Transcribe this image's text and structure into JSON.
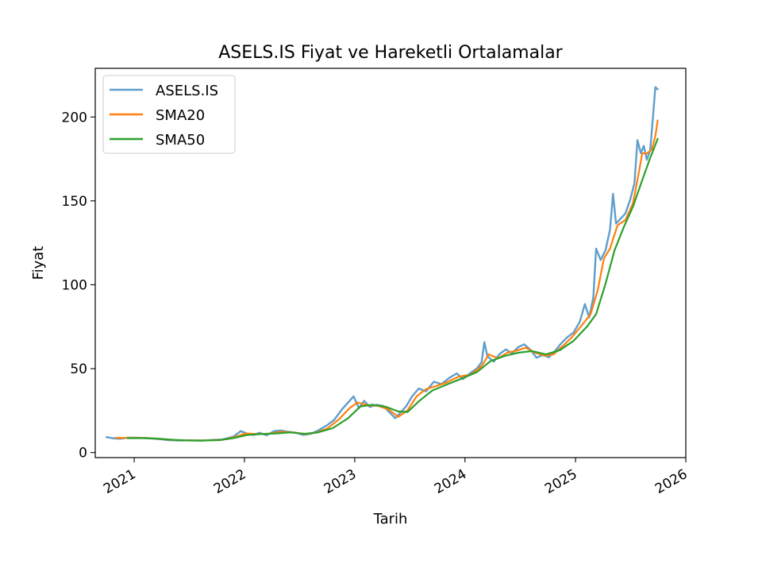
{
  "chart_data": {
    "type": "line",
    "title": "ASELS.IS Fiyat ve Hareketli Ortalamalar",
    "xlabel": "Tarih",
    "ylabel": "Fiyat",
    "x_tick_labels": [
      "2021",
      "2022",
      "2023",
      "2024",
      "2025",
      "2026"
    ],
    "y_tick_labels": [
      "0",
      "50",
      "100",
      "150",
      "200"
    ],
    "y_ticks": [
      0,
      50,
      100,
      150,
      200
    ],
    "x_ticks": [
      "2021-01-01",
      "2022-01-01",
      "2023-01-01",
      "2024-01-01",
      "2025-01-01",
      "2026-01-01"
    ],
    "xlim": [
      "2020-08-25",
      "2026-01-01"
    ],
    "ylim": [
      -3,
      229
    ],
    "grid": false,
    "legend_position": "upper-left",
    "series": [
      {
        "name": "ASELS.IS",
        "color": "#5f9ecb",
        "points": [
          [
            "2020-10-01",
            9.2
          ],
          [
            "2020-10-20",
            8.6
          ],
          [
            "2020-11-15",
            8.2
          ],
          [
            "2020-12-10",
            8.9
          ],
          [
            "2021-01-10",
            8.9
          ],
          [
            "2021-02-15",
            8.6
          ],
          [
            "2021-03-20",
            8.1
          ],
          [
            "2021-04-25",
            7.4
          ],
          [
            "2021-06-01",
            7.2
          ],
          [
            "2021-07-05",
            7.3
          ],
          [
            "2021-08-10",
            7.1
          ],
          [
            "2021-09-15",
            7.5
          ],
          [
            "2021-10-20",
            7.8
          ],
          [
            "2021-11-25",
            9.5
          ],
          [
            "2021-12-20",
            12.8
          ],
          [
            "2022-01-10",
            11.2
          ],
          [
            "2022-02-01",
            10.5
          ],
          [
            "2022-02-20",
            11.8
          ],
          [
            "2022-03-15",
            10.3
          ],
          [
            "2022-04-10",
            12.8
          ],
          [
            "2022-05-01",
            13.2
          ],
          [
            "2022-05-25",
            12.4
          ],
          [
            "2022-06-20",
            11.8
          ],
          [
            "2022-07-15",
            10.5
          ],
          [
            "2022-08-10",
            11.2
          ],
          [
            "2022-09-05",
            13.5
          ],
          [
            "2022-10-01",
            16.2
          ],
          [
            "2022-10-25",
            19.5
          ],
          [
            "2022-11-20",
            25.8
          ],
          [
            "2022-12-10",
            29.8
          ],
          [
            "2022-12-28",
            33.5
          ],
          [
            "2023-01-15",
            26.5
          ],
          [
            "2023-02-01",
            30.8
          ],
          [
            "2023-02-20",
            27.2
          ],
          [
            "2023-03-15",
            28.5
          ],
          [
            "2023-04-05",
            27.8
          ],
          [
            "2023-04-25",
            24.2
          ],
          [
            "2023-05-15",
            20.5
          ],
          [
            "2023-06-01",
            23.8
          ],
          [
            "2023-06-20",
            27.5
          ],
          [
            "2023-07-10",
            33.5
          ],
          [
            "2023-08-01",
            38.2
          ],
          [
            "2023-08-25",
            36.5
          ],
          [
            "2023-09-20",
            42.2
          ],
          [
            "2023-10-15",
            40.8
          ],
          [
            "2023-11-10",
            44.5
          ],
          [
            "2023-12-05",
            47.2
          ],
          [
            "2023-12-25",
            43.8
          ],
          [
            "2024-01-20",
            47.5
          ],
          [
            "2024-02-10",
            50.2
          ],
          [
            "2024-02-25",
            53.8
          ],
          [
            "2024-03-05",
            65.8
          ],
          [
            "2024-03-15",
            57.5
          ],
          [
            "2024-04-05",
            54.2
          ],
          [
            "2024-04-25",
            58.8
          ],
          [
            "2024-05-15",
            61.5
          ],
          [
            "2024-06-05",
            59.2
          ],
          [
            "2024-06-25",
            62.8
          ],
          [
            "2024-07-15",
            64.5
          ],
          [
            "2024-08-05",
            61.2
          ],
          [
            "2024-08-25",
            56.5
          ],
          [
            "2024-09-15",
            58.2
          ],
          [
            "2024-10-05",
            56.8
          ],
          [
            "2024-10-25",
            60.5
          ],
          [
            "2024-11-15",
            65.2
          ],
          [
            "2024-12-05",
            68.8
          ],
          [
            "2024-12-25",
            71.5
          ],
          [
            "2025-01-15",
            77.8
          ],
          [
            "2025-02-01",
            88.5
          ],
          [
            "2025-02-15",
            80.5
          ],
          [
            "2025-03-01",
            92.5
          ],
          [
            "2025-03-10",
            121.5
          ],
          [
            "2025-03-25",
            114.8
          ],
          [
            "2025-04-10",
            120.5
          ],
          [
            "2025-04-25",
            132.8
          ],
          [
            "2025-05-05",
            154.2
          ],
          [
            "2025-05-15",
            136.5
          ],
          [
            "2025-06-01",
            139.8
          ],
          [
            "2025-06-15",
            142.5
          ],
          [
            "2025-07-01",
            150.8
          ],
          [
            "2025-07-15",
            160.5
          ],
          [
            "2025-07-25",
            186.2
          ],
          [
            "2025-08-05",
            178.5
          ],
          [
            "2025-08-15",
            182.8
          ],
          [
            "2025-08-25",
            174.5
          ],
          [
            "2025-09-05",
            180.2
          ],
          [
            "2025-09-15",
            201.5
          ],
          [
            "2025-09-22",
            217.8
          ],
          [
            "2025-09-30",
            216.5
          ]
        ]
      },
      {
        "name": "SMA20",
        "color": "#ff7f0e",
        "points": [
          [
            "2020-11-01",
            8.8
          ],
          [
            "2020-12-10",
            8.7
          ],
          [
            "2021-01-20",
            8.8
          ],
          [
            "2021-03-01",
            8.5
          ],
          [
            "2021-04-15",
            7.8
          ],
          [
            "2021-06-01",
            7.3
          ],
          [
            "2021-07-20",
            7.2
          ],
          [
            "2021-09-01",
            7.3
          ],
          [
            "2021-10-20",
            7.6
          ],
          [
            "2021-11-30",
            9.2
          ],
          [
            "2022-01-05",
            11.4
          ],
          [
            "2022-02-15",
            11.0
          ],
          [
            "2022-03-25",
            11.3
          ],
          [
            "2022-05-01",
            12.4
          ],
          [
            "2022-06-10",
            12.0
          ],
          [
            "2022-07-20",
            11.0
          ],
          [
            "2022-08-25",
            11.8
          ],
          [
            "2022-10-01",
            14.2
          ],
          [
            "2022-11-10",
            19.8
          ],
          [
            "2022-12-15",
            26.5
          ],
          [
            "2023-01-10",
            29.8
          ],
          [
            "2023-02-15",
            28.2
          ],
          [
            "2023-03-20",
            27.8
          ],
          [
            "2023-04-25",
            25.5
          ],
          [
            "2023-05-25",
            21.2
          ],
          [
            "2023-06-25",
            25.2
          ],
          [
            "2023-07-25",
            33.5
          ],
          [
            "2023-08-25",
            37.8
          ],
          [
            "2023-09-25",
            39.5
          ],
          [
            "2023-11-01",
            41.8
          ],
          [
            "2023-12-10",
            45.2
          ],
          [
            "2024-01-20",
            46.5
          ],
          [
            "2024-02-25",
            51.5
          ],
          [
            "2024-03-20",
            58.5
          ],
          [
            "2024-04-20",
            56.2
          ],
          [
            "2024-05-20",
            59.5
          ],
          [
            "2024-06-20",
            60.8
          ],
          [
            "2024-07-20",
            62.5
          ],
          [
            "2024-08-20",
            59.5
          ],
          [
            "2024-09-20",
            57.8
          ],
          [
            "2024-10-20",
            58.5
          ],
          [
            "2024-11-20",
            63.5
          ],
          [
            "2024-12-20",
            68.8
          ],
          [
            "2025-01-20",
            75.5
          ],
          [
            "2025-02-20",
            82.5
          ],
          [
            "2025-03-15",
            96.5
          ],
          [
            "2025-04-05",
            115.8
          ],
          [
            "2025-04-25",
            121.5
          ],
          [
            "2025-05-20",
            135.5
          ],
          [
            "2025-06-15",
            138.5
          ],
          [
            "2025-07-10",
            148.5
          ],
          [
            "2025-07-25",
            162.5
          ],
          [
            "2025-08-10",
            178.5
          ],
          [
            "2025-08-25",
            178.2
          ],
          [
            "2025-09-10",
            180.5
          ],
          [
            "2025-09-22",
            188.5
          ],
          [
            "2025-09-30",
            198.0
          ]
        ]
      },
      {
        "name": "SMA50",
        "color": "#2ca02c",
        "points": [
          [
            "2020-12-10",
            8.6
          ],
          [
            "2021-02-01",
            8.6
          ],
          [
            "2021-03-20",
            8.3
          ],
          [
            "2021-05-10",
            7.6
          ],
          [
            "2021-07-01",
            7.2
          ],
          [
            "2021-08-20",
            7.2
          ],
          [
            "2021-10-10",
            7.4
          ],
          [
            "2021-11-25",
            8.6
          ],
          [
            "2022-01-10",
            10.5
          ],
          [
            "2022-02-25",
            11.0
          ],
          [
            "2022-04-15",
            11.4
          ],
          [
            "2022-06-01",
            12.0
          ],
          [
            "2022-07-20",
            11.2
          ],
          [
            "2022-09-01",
            12.0
          ],
          [
            "2022-10-20",
            14.5
          ],
          [
            "2022-12-10",
            20.5
          ],
          [
            "2023-01-20",
            27.5
          ],
          [
            "2023-03-01",
            28.5
          ],
          [
            "2023-04-15",
            27.2
          ],
          [
            "2023-05-25",
            24.5
          ],
          [
            "2023-06-25",
            24.2
          ],
          [
            "2023-08-01",
            30.5
          ],
          [
            "2023-09-15",
            37.0
          ],
          [
            "2023-11-01",
            40.5
          ],
          [
            "2023-12-20",
            44.0
          ],
          [
            "2024-02-10",
            48.0
          ],
          [
            "2024-03-25",
            54.5
          ],
          [
            "2024-05-10",
            57.5
          ],
          [
            "2024-06-25",
            59.5
          ],
          [
            "2024-08-10",
            60.5
          ],
          [
            "2024-09-25",
            58.5
          ],
          [
            "2024-11-10",
            61.0
          ],
          [
            "2024-12-25",
            66.5
          ],
          [
            "2025-02-10",
            75.5
          ],
          [
            "2025-03-10",
            82.5
          ],
          [
            "2025-04-10",
            100.5
          ],
          [
            "2025-05-10",
            120.5
          ],
          [
            "2025-06-10",
            134.5
          ],
          [
            "2025-07-10",
            146.5
          ],
          [
            "2025-08-10",
            162.5
          ],
          [
            "2025-09-05",
            175.5
          ],
          [
            "2025-09-30",
            187.0
          ]
        ]
      }
    ]
  }
}
